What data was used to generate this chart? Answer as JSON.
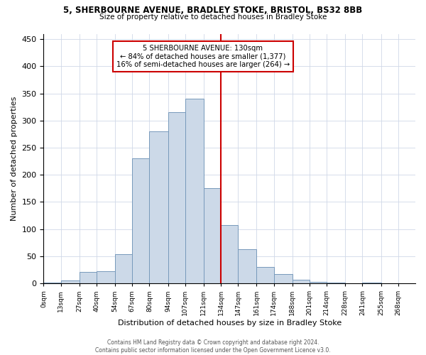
{
  "title1": "5, SHERBOURNE AVENUE, BRADLEY STOKE, BRISTOL, BS32 8BB",
  "title2": "Size of property relative to detached houses in Bradley Stoke",
  "xlabel": "Distribution of detached houses by size in Bradley Stoke",
  "ylabel": "Number of detached properties",
  "bin_labels": [
    "0sqm",
    "13sqm",
    "27sqm",
    "40sqm",
    "54sqm",
    "67sqm",
    "80sqm",
    "94sqm",
    "107sqm",
    "121sqm",
    "134sqm",
    "147sqm",
    "161sqm",
    "174sqm",
    "188sqm",
    "201sqm",
    "214sqm",
    "228sqm",
    "241sqm",
    "255sqm",
    "268sqm"
  ],
  "bin_values": [
    2,
    5,
    21,
    22,
    54,
    230,
    280,
    315,
    340,
    175,
    107,
    63,
    30,
    17,
    6,
    3,
    2,
    0,
    2,
    0,
    0
  ],
  "bar_color": "#ccd9e8",
  "bar_edge_color": "#7799bb",
  "vline_x_idx": 10,
  "vline_color": "#cc0000",
  "annotation_title": "5 SHERBOURNE AVENUE: 130sqm",
  "annotation_line1": "← 84% of detached houses are smaller (1,377)",
  "annotation_line2": "16% of semi-detached houses are larger (264) →",
  "annotation_box_color": "#cc0000",
  "ylim": [
    0,
    460
  ],
  "yticks": [
    0,
    50,
    100,
    150,
    200,
    250,
    300,
    350,
    400,
    450
  ],
  "footer1": "Contains HM Land Registry data © Crown copyright and database right 2024.",
  "footer2": "Contains public sector information licensed under the Open Government Licence v3.0.",
  "bin_edges": [
    0,
    13,
    27,
    40,
    54,
    67,
    80,
    94,
    107,
    121,
    134,
    147,
    161,
    174,
    188,
    201,
    214,
    228,
    241,
    255,
    268,
    281
  ]
}
